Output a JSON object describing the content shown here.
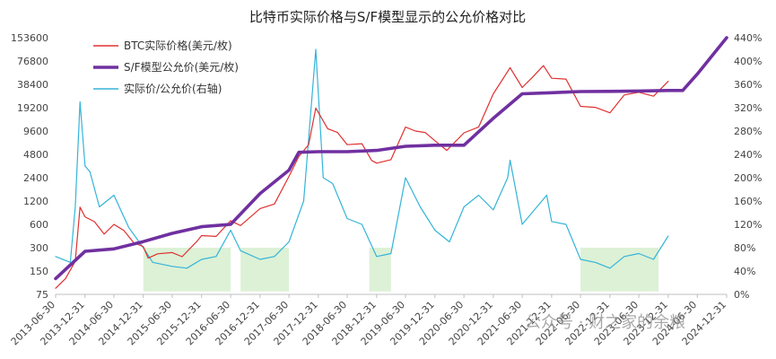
{
  "chart_data": {
    "type": "line",
    "title": "比特币实际价格与S/F模型显示的公允价格对比",
    "x_axis": {
      "type": "date",
      "range": [
        "2013-06-30",
        "2024-12-31"
      ],
      "tick_labels": [
        "2013-06-30",
        "2013-12-31",
        "2014-06-30",
        "2014-12-31",
        "2015-06-30",
        "2015-12-31",
        "2016-06-30",
        "2016-12-31",
        "2017-06-30",
        "2017-12-31",
        "2018-06-30",
        "2018-12-31",
        "2019-06-30",
        "2019-12-31",
        "2020-06-30",
        "2020-12-31",
        "2021-06-30",
        "2021-12-31",
        "2022-06-30",
        "2022-12-31",
        "2023-06-30",
        "2023-12-31",
        "2024-06-30",
        "2024-12-31"
      ]
    },
    "y_left": {
      "scale": "log2",
      "ylim": [
        75,
        153600
      ],
      "tick_labels": [
        "153600",
        "76800",
        "38400",
        "19200",
        "9600",
        "4800",
        "2400",
        "1200",
        "600",
        "300",
        "150",
        "75"
      ]
    },
    "y_right": {
      "scale": "linear",
      "ylim": [
        0,
        440
      ],
      "unit": "%",
      "tick_labels": [
        "440%",
        "400%",
        "360%",
        "320%",
        "280%",
        "240%",
        "200%",
        "160%",
        "120%",
        "80%",
        "40%",
        "0%"
      ]
    },
    "series": [
      {
        "name": "BTC实际价格(美元/枚)",
        "color": "#e03030",
        "axis": "left",
        "points": [
          [
            "2013-06-30",
            90
          ],
          [
            "2013-08-31",
            120
          ],
          [
            "2013-10-31",
            200
          ],
          [
            "2013-11-30",
            1000
          ],
          [
            "2013-12-31",
            750
          ],
          [
            "2014-02-28",
            650
          ],
          [
            "2014-04-30",
            450
          ],
          [
            "2014-06-30",
            600
          ],
          [
            "2014-08-31",
            500
          ],
          [
            "2014-10-31",
            350
          ],
          [
            "2014-12-31",
            310
          ],
          [
            "2015-01-31",
            220
          ],
          [
            "2015-03-31",
            250
          ],
          [
            "2015-06-30",
            260
          ],
          [
            "2015-08-31",
            230
          ],
          [
            "2015-11-30",
            360
          ],
          [
            "2015-12-31",
            430
          ],
          [
            "2016-03-31",
            420
          ],
          [
            "2016-06-30",
            670
          ],
          [
            "2016-08-31",
            580
          ],
          [
            "2016-12-31",
            960
          ],
          [
            "2017-03-31",
            1100
          ],
          [
            "2017-06-30",
            2500
          ],
          [
            "2017-08-31",
            4500
          ],
          [
            "2017-10-31",
            6400
          ],
          [
            "2017-12-15",
            19000
          ],
          [
            "2018-02-28",
            10300
          ],
          [
            "2018-04-30",
            9200
          ],
          [
            "2018-06-30",
            6400
          ],
          [
            "2018-09-30",
            6600
          ],
          [
            "2018-11-30",
            4000
          ],
          [
            "2018-12-31",
            3700
          ],
          [
            "2019-03-31",
            4100
          ],
          [
            "2019-06-30",
            10800
          ],
          [
            "2019-08-31",
            9600
          ],
          [
            "2019-10-31",
            9200
          ],
          [
            "2019-12-31",
            7200
          ],
          [
            "2020-03-15",
            5400
          ],
          [
            "2020-06-30",
            9100
          ],
          [
            "2020-09-30",
            10800
          ],
          [
            "2020-12-31",
            29000
          ],
          [
            "2021-04-15",
            63000
          ],
          [
            "2021-06-30",
            35000
          ],
          [
            "2021-08-31",
            47000
          ],
          [
            "2021-11-10",
            67000
          ],
          [
            "2021-12-31",
            46000
          ],
          [
            "2022-03-31",
            45000
          ],
          [
            "2022-06-30",
            20000
          ],
          [
            "2022-09-30",
            19400
          ],
          [
            "2022-12-31",
            16500
          ],
          [
            "2023-03-31",
            28000
          ],
          [
            "2023-06-30",
            30400
          ],
          [
            "2023-09-30",
            27000
          ],
          [
            "2023-12-31",
            42000
          ]
        ]
      },
      {
        "name": "S/F模型公允价(美元/枚)",
        "color": "#7030a0",
        "axis": "left",
        "points": [
          [
            "2013-06-30",
            120
          ],
          [
            "2013-12-31",
            270
          ],
          [
            "2014-06-30",
            290
          ],
          [
            "2014-12-31",
            360
          ],
          [
            "2015-06-30",
            460
          ],
          [
            "2015-12-31",
            560
          ],
          [
            "2016-06-30",
            600
          ],
          [
            "2016-12-31",
            1500
          ],
          [
            "2017-06-30",
            3000
          ],
          [
            "2017-08-31",
            5100
          ],
          [
            "2017-12-31",
            5200
          ],
          [
            "2018-06-30",
            5200
          ],
          [
            "2018-12-31",
            5400
          ],
          [
            "2019-06-30",
            6100
          ],
          [
            "2019-12-31",
            6300
          ],
          [
            "2020-06-30",
            6300
          ],
          [
            "2020-12-31",
            14000
          ],
          [
            "2021-06-30",
            29000
          ],
          [
            "2021-12-31",
            30000
          ],
          [
            "2022-06-30",
            31000
          ],
          [
            "2022-12-31",
            31200
          ],
          [
            "2023-06-30",
            31500
          ],
          [
            "2023-12-31",
            32000
          ],
          [
            "2024-03-31",
            32000
          ],
          [
            "2024-06-30",
            52000
          ],
          [
            "2024-12-31",
            153600
          ]
        ]
      },
      {
        "name": "实际价/公允价(右轴)",
        "color": "#33b4d8",
        "axis": "right",
        "points": [
          [
            "2013-06-30",
            65
          ],
          [
            "2013-09-30",
            55
          ],
          [
            "2013-10-31",
            150
          ],
          [
            "2013-11-30",
            330
          ],
          [
            "2013-12-31",
            220
          ],
          [
            "2014-01-31",
            210
          ],
          [
            "2014-03-31",
            150
          ],
          [
            "2014-06-30",
            170
          ],
          [
            "2014-09-30",
            115
          ],
          [
            "2014-12-31",
            80
          ],
          [
            "2015-02-28",
            55
          ],
          [
            "2015-06-30",
            48
          ],
          [
            "2015-09-30",
            45
          ],
          [
            "2015-12-31",
            60
          ],
          [
            "2016-03-31",
            65
          ],
          [
            "2016-06-30",
            110
          ],
          [
            "2016-08-31",
            75
          ],
          [
            "2016-12-31",
            60
          ],
          [
            "2017-03-31",
            65
          ],
          [
            "2017-06-30",
            90
          ],
          [
            "2017-09-30",
            160
          ],
          [
            "2017-12-15",
            420
          ],
          [
            "2018-01-31",
            200
          ],
          [
            "2018-03-31",
            190
          ],
          [
            "2018-06-30",
            130
          ],
          [
            "2018-09-30",
            120
          ],
          [
            "2018-12-31",
            65
          ],
          [
            "2019-03-31",
            70
          ],
          [
            "2019-06-30",
            200
          ],
          [
            "2019-09-30",
            150
          ],
          [
            "2019-12-31",
            110
          ],
          [
            "2020-03-31",
            90
          ],
          [
            "2020-06-30",
            150
          ],
          [
            "2020-09-30",
            170
          ],
          [
            "2020-12-31",
            145
          ],
          [
            "2021-03-31",
            200
          ],
          [
            "2021-04-15",
            230
          ],
          [
            "2021-06-30",
            120
          ],
          [
            "2021-09-30",
            150
          ],
          [
            "2021-11-30",
            170
          ],
          [
            "2021-12-31",
            125
          ],
          [
            "2022-03-31",
            120
          ],
          [
            "2022-06-30",
            60
          ],
          [
            "2022-09-30",
            55
          ],
          [
            "2022-12-31",
            45
          ],
          [
            "2023-03-31",
            65
          ],
          [
            "2023-06-30",
            70
          ],
          [
            "2023-09-30",
            60
          ],
          [
            "2023-12-31",
            100
          ]
        ]
      }
    ],
    "shaded_regions": [
      [
        "2014-12-31",
        "2016-06-30"
      ],
      [
        "2016-08-31",
        "2017-06-30"
      ],
      [
        "2018-11-15",
        "2019-03-31"
      ],
      [
        "2022-06-30",
        "2023-10-31"
      ]
    ],
    "legend": {
      "placement": "top-left",
      "entries": [
        "BTC实际价格(美元/枚)",
        "S/F模型公允价(美元/枚)",
        "实际价/公允价(右轴)"
      ]
    },
    "grid": false
  },
  "watermark": "公众号 · 财之家的余粮"
}
